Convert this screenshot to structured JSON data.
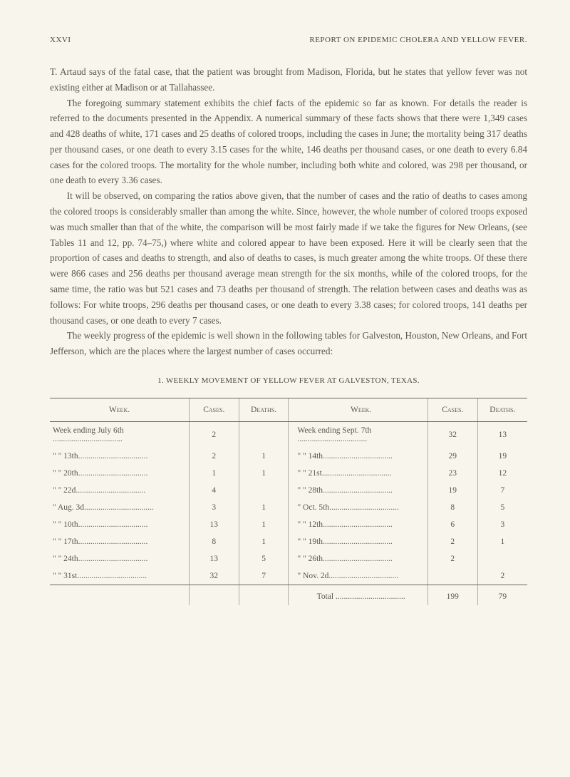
{
  "header": {
    "page_number": "XXVI",
    "title": "REPORT ON EPIDEMIC CHOLERA AND YELLOW FEVER."
  },
  "paragraphs": {
    "p1": "T. Artaud says of the fatal case, that the patient was brought from Madison, Florida, but he states that yellow fever was not existing either at Madison or at Tallahassee.",
    "p2": "The foregoing summary statement exhibits the chief facts of the epidemic so far as known. For details the reader is referred to the documents presented in the Appendix. A numerical summary of these facts shows that there were 1,349 cases and 428 deaths of white, 171 cases and 25 deaths of colored troops, including the cases in June; the mortality being 317 deaths per thousand cases, or one death to every 3.15 cases for the white, 146 deaths per thousand cases, or one death to every 6.84 cases for the colored troops. The mortality for the whole number, including both white and colored, was 298 per thousand, or one death to every 3.36 cases.",
    "p3": "It will be observed, on comparing the ratios above given, that the number of cases and the ratio of deaths to cases among the colored troops is considerably smaller than among the white. Since, however, the whole number of colored troops exposed was much smaller than that of the white, the comparison will be most fairly made if we take the figures for New Orleans, (see Tables 11 and 12, pp. 74–75,) where white and colored appear to have been exposed. Here it will be clearly seen that the proportion of cases and deaths to strength, and also of deaths to cases, is much greater among the white troops. Of these there were 866 cases and 256 deaths per thousand average mean strength for the six months, while of the colored troops, for the same time, the ratio was but 521 cases and 73 deaths per thousand of strength. The relation between cases and deaths was as follows: For white troops, 296 deaths per thousand cases, or one death to every 3.38 cases; for colored troops, 141 deaths per thousand cases, or one death to every 7 cases.",
    "p4": "The weekly progress of the epidemic is well shown in the following tables for Galveston, Houston, New Orleans, and Fort Jefferson, which are the places where the largest number of cases occurred:"
  },
  "table": {
    "title": "1. WEEKLY MOVEMENT OF YELLOW FEVER AT GALVESTON, TEXAS.",
    "headers": {
      "week": "Week.",
      "cases": "Cases.",
      "deaths": "Deaths."
    },
    "left": [
      {
        "label": "Week ending July  6th",
        "cases": "2",
        "deaths": ""
      },
      {
        "label": "\"          \"   13th",
        "cases": "2",
        "deaths": "1"
      },
      {
        "label": "\"          \"   20th",
        "cases": "1",
        "deaths": "1"
      },
      {
        "label": "\"          \"   22d",
        "cases": "4",
        "deaths": ""
      },
      {
        "label": "\"        Aug.  3d",
        "cases": "3",
        "deaths": "1"
      },
      {
        "label": "\"          \"   10th",
        "cases": "13",
        "deaths": "1"
      },
      {
        "label": "\"          \"   17th",
        "cases": "8",
        "deaths": "1"
      },
      {
        "label": "\"          \"   24th",
        "cases": "13",
        "deaths": "5"
      },
      {
        "label": "\"          \"   31st",
        "cases": "32",
        "deaths": "7"
      }
    ],
    "right": [
      {
        "label": "Week ending Sept. 7th",
        "cases": "32",
        "deaths": "13"
      },
      {
        "label": "\"          \"   14th",
        "cases": "29",
        "deaths": "19"
      },
      {
        "label": "\"          \"   21st",
        "cases": "23",
        "deaths": "12"
      },
      {
        "label": "\"          \"   28th",
        "cases": "19",
        "deaths": "7"
      },
      {
        "label": "\"        Oct.  5th",
        "cases": "8",
        "deaths": "5"
      },
      {
        "label": "\"          \"   12th",
        "cases": "6",
        "deaths": "3"
      },
      {
        "label": "\"          \"   19th",
        "cases": "2",
        "deaths": "1"
      },
      {
        "label": "\"          \"   26th",
        "cases": "2",
        "deaths": ""
      },
      {
        "label": "\"        Nov.  2d",
        "cases": "",
        "deaths": "2"
      }
    ],
    "total": {
      "label": "Total",
      "cases": "199",
      "deaths": "79"
    }
  },
  "style": {
    "background_color": "#f8f6ec",
    "text_color": "#5a584c",
    "rule_color": "#6a685c",
    "body_fontsize": 13.2,
    "table_fontsize": 11.5,
    "header_fontsize": 11
  }
}
